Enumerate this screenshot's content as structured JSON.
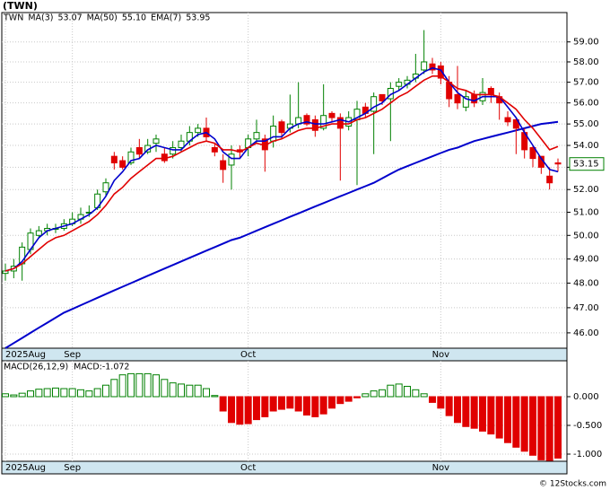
{
  "title": "(TWN)",
  "footer": "© 12Stocks.com",
  "chart_data": [
    {
      "type": "candlestick",
      "symbol": "TWN",
      "log_scale": true,
      "grid": true,
      "up_color": "#008000",
      "down_color": "#e00000",
      "categories": [
        "2025Aug",
        null,
        null,
        null,
        null,
        null,
        null,
        null,
        "Sep",
        null,
        null,
        null,
        null,
        null,
        null,
        null,
        null,
        null,
        null,
        null,
        null,
        null,
        null,
        null,
        null,
        null,
        null,
        null,
        null,
        "Oct",
        null,
        null,
        null,
        null,
        null,
        null,
        null,
        null,
        null,
        null,
        null,
        null,
        null,
        null,
        null,
        null,
        null,
        null,
        null,
        null,
        null,
        null,
        "Nov",
        null,
        null,
        null,
        null,
        null,
        null,
        null,
        null,
        null,
        null,
        null,
        null,
        null,
        null
      ],
      "open": [
        48.4,
        48.5,
        48.8,
        49.4,
        50.0,
        50.2,
        50.3,
        50.3,
        50.5,
        50.7,
        51.0,
        51.2,
        51.9,
        53.5,
        53.3,
        53.2,
        53.9,
        53.7,
        54.1,
        53.6,
        53.6,
        53.9,
        54.2,
        54.6,
        54.8,
        53.9,
        53.3,
        53.1,
        53.8,
        53.9,
        54.3,
        54.3,
        54.2,
        55.1,
        54.8,
        55.0,
        55.4,
        55.2,
        54.8,
        55.5,
        55.3,
        54.9,
        55.2,
        55.8,
        55.6,
        56.4,
        56.2,
        56.8,
        56.9,
        57.2,
        57.6,
        57.9,
        57.8,
        57.0,
        56.4,
        55.8,
        56.4,
        56.1,
        56.7,
        56.3,
        55.3,
        55.2,
        54.6,
        53.9,
        53.5,
        52.6,
        53.2
      ],
      "high": [
        48.8,
        49.0,
        49.7,
        50.3,
        50.4,
        50.5,
        50.5,
        50.7,
        51.0,
        51.2,
        51.3,
        52.0,
        52.5,
        53.7,
        53.5,
        53.9,
        54.3,
        54.3,
        54.5,
        53.9,
        54.2,
        54.5,
        54.9,
        55.0,
        55.3,
        54.1,
        53.6,
        54.0,
        54.0,
        54.5,
        55.2,
        54.5,
        55.4,
        55.2,
        56.4,
        57.0,
        55.5,
        55.4,
        56.9,
        55.6,
        55.5,
        55.6,
        56.1,
        56.0,
        56.5,
        56.4,
        57.0,
        57.2,
        57.3,
        58.4,
        59.6,
        58.2,
        58.0,
        57.3,
        57.8,
        56.6,
        56.6,
        57.2,
        56.8,
        56.5,
        55.6,
        55.3,
        54.8,
        54.0,
        53.4,
        53.0,
        53.4
      ],
      "low": [
        48.1,
        48.2,
        48.1,
        49.2,
        49.9,
        50.0,
        50.1,
        50.2,
        50.4,
        50.5,
        50.8,
        51.1,
        51.7,
        52.9,
        52.9,
        53.1,
        53.4,
        53.6,
        53.7,
        53.2,
        53.4,
        53.7,
        54.0,
        54.4,
        54.2,
        53.5,
        52.3,
        52.0,
        53.4,
        53.5,
        54.1,
        52.8,
        53.9,
        54.3,
        54.6,
        54.8,
        54.9,
        54.4,
        54.7,
        55.1,
        52.4,
        54.7,
        52.2,
        55.3,
        53.6,
        55.9,
        54.2,
        56.6,
        56.7,
        57.0,
        57.4,
        57.4,
        56.9,
        55.8,
        55.7,
        55.6,
        55.8,
        55.9,
        56.0,
        55.2,
        54.9,
        53.6,
        53.4,
        53.0,
        52.7,
        52.0,
        52.8
      ],
      "close": [
        48.5,
        48.7,
        49.5,
        50.1,
        50.2,
        50.3,
        50.3,
        50.5,
        50.7,
        50.9,
        51.0,
        51.8,
        52.3,
        53.2,
        53.0,
        53.7,
        53.6,
        54.0,
        54.3,
        53.3,
        53.9,
        54.2,
        54.6,
        54.8,
        54.4,
        53.7,
        52.9,
        53.6,
        53.7,
        54.3,
        54.6,
        53.8,
        54.9,
        54.6,
        55.0,
        55.3,
        55.0,
        54.7,
        55.4,
        55.3,
        54.8,
        55.3,
        55.7,
        55.5,
        56.3,
        56.1,
        56.7,
        57.0,
        57.1,
        57.4,
        58.0,
        57.6,
        57.2,
        56.2,
        56.0,
        56.3,
        56.0,
        56.5,
        56.4,
        56.0,
        55.1,
        54.8,
        53.8,
        53.4,
        53.0,
        52.3,
        53.15
      ],
      "last_label": "53.15",
      "series": [
        {
          "name": "MA(3)",
          "legend_value": "53.07",
          "color": "#0000cc",
          "width": 1.6,
          "values": [
            48.5,
            48.6,
            48.9,
            49.4,
            49.9,
            50.2,
            50.3,
            50.4,
            50.5,
            50.7,
            50.9,
            51.2,
            51.7,
            52.4,
            52.8,
            53.3,
            53.4,
            53.8,
            54.0,
            53.9,
            53.8,
            53.8,
            54.2,
            54.5,
            54.6,
            54.3,
            53.7,
            53.4,
            53.4,
            53.9,
            54.2,
            54.2,
            54.4,
            54.4,
            54.8,
            55.0,
            55.1,
            55.0,
            55.0,
            55.1,
            55.2,
            55.1,
            55.3,
            55.5,
            55.8,
            56.0,
            56.4,
            56.6,
            56.9,
            57.2,
            57.5,
            57.7,
            57.6,
            57.0,
            56.5,
            56.2,
            56.1,
            56.3,
            56.3,
            56.3,
            55.8,
            55.3,
            54.6,
            54.0,
            53.4,
            52.9,
            52.8
          ]
        },
        {
          "name": "MA(50)",
          "legend_value": "55.10",
          "color": "#0000cc",
          "width": 2,
          "values": [
            45.4,
            45.6,
            45.8,
            46.0,
            46.2,
            46.4,
            46.6,
            46.8,
            46.95,
            47.1,
            47.25,
            47.4,
            47.55,
            47.7,
            47.85,
            48.0,
            48.15,
            48.3,
            48.45,
            48.6,
            48.75,
            48.9,
            49.05,
            49.2,
            49.35,
            49.5,
            49.65,
            49.8,
            49.9,
            50.05,
            50.2,
            50.35,
            50.5,
            50.65,
            50.8,
            50.95,
            51.1,
            51.25,
            51.4,
            51.55,
            51.7,
            51.85,
            52.0,
            52.15,
            52.3,
            52.5,
            52.7,
            52.9,
            53.05,
            53.2,
            53.35,
            53.5,
            53.65,
            53.8,
            53.9,
            54.05,
            54.2,
            54.3,
            54.4,
            54.5,
            54.6,
            54.7,
            54.8,
            54.9,
            55.0,
            55.05,
            55.1
          ]
        },
        {
          "name": "EMA(7)",
          "legend_value": "53.95",
          "color": "#e00000",
          "width": 1.6,
          "values": [
            48.5,
            48.6,
            48.8,
            49.1,
            49.4,
            49.7,
            49.9,
            50.0,
            50.2,
            50.4,
            50.6,
            50.9,
            51.3,
            51.8,
            52.1,
            52.5,
            52.8,
            53.1,
            53.4,
            53.4,
            53.5,
            53.7,
            53.9,
            54.1,
            54.2,
            54.1,
            53.8,
            53.8,
            53.7,
            53.9,
            54.1,
            54.0,
            54.2,
            54.3,
            54.5,
            54.7,
            54.8,
            54.8,
            54.9,
            55.0,
            55.0,
            55.0,
            55.2,
            55.3,
            55.5,
            55.7,
            56.0,
            56.3,
            56.5,
            56.8,
            57.1,
            57.3,
            57.3,
            57.0,
            56.7,
            56.6,
            56.4,
            56.4,
            56.4,
            56.3,
            56.0,
            55.7,
            55.2,
            54.8,
            54.3,
            53.8,
            53.95
          ]
        }
      ],
      "ylim": [
        45.4,
        60.5
      ],
      "yticks": [
        {
          "value": 46,
          "label": "46.00"
        },
        {
          "value": 47,
          "label": "47.00"
        },
        {
          "value": 48,
          "label": "48.00"
        },
        {
          "value": 49,
          "label": "49.00"
        },
        {
          "value": 50,
          "label": "50.00"
        },
        {
          "value": 51,
          "label": "51.00"
        },
        {
          "value": 52,
          "label": "52.00"
        },
        {
          "value": 53,
          "label": "53.00"
        },
        {
          "value": 54,
          "label": "54.00"
        },
        {
          "value": 55,
          "label": "55.00"
        },
        {
          "value": 56,
          "label": "56.00"
        },
        {
          "value": 57,
          "label": "57.00"
        },
        {
          "value": 58,
          "label": "58.00"
        },
        {
          "value": 59,
          "label": "59.00"
        }
      ]
    },
    {
      "type": "bar",
      "name": "MACD(26,12,9)",
      "value_text": "MACD:-1.072",
      "up_color": "#008000",
      "down_color": "#e00000",
      "values": [
        0.05,
        0.03,
        0.06,
        0.1,
        0.13,
        0.14,
        0.15,
        0.14,
        0.14,
        0.12,
        0.1,
        0.14,
        0.2,
        0.3,
        0.38,
        0.4,
        0.4,
        0.4,
        0.38,
        0.3,
        0.24,
        0.22,
        0.2,
        0.2,
        0.14,
        0.02,
        -0.25,
        -0.45,
        -0.48,
        -0.47,
        -0.4,
        -0.35,
        -0.25,
        -0.22,
        -0.2,
        -0.25,
        -0.32,
        -0.35,
        -0.3,
        -0.2,
        -0.12,
        -0.08,
        -0.02,
        0.05,
        0.1,
        0.12,
        0.2,
        0.22,
        0.18,
        0.12,
        0.05,
        -0.1,
        -0.2,
        -0.33,
        -0.45,
        -0.52,
        -0.55,
        -0.6,
        -0.65,
        -0.72,
        -0.8,
        -0.88,
        -0.95,
        -1.02,
        -1.1,
        -1.11,
        -1.07
      ],
      "ylim": [
        -1.125,
        0.625
      ],
      "yticks": [
        {
          "value": 0,
          "label": "0.000"
        },
        {
          "value": -0.5,
          "label": "-0.500"
        },
        {
          "value": -1,
          "label": "-1.000"
        }
      ]
    }
  ]
}
